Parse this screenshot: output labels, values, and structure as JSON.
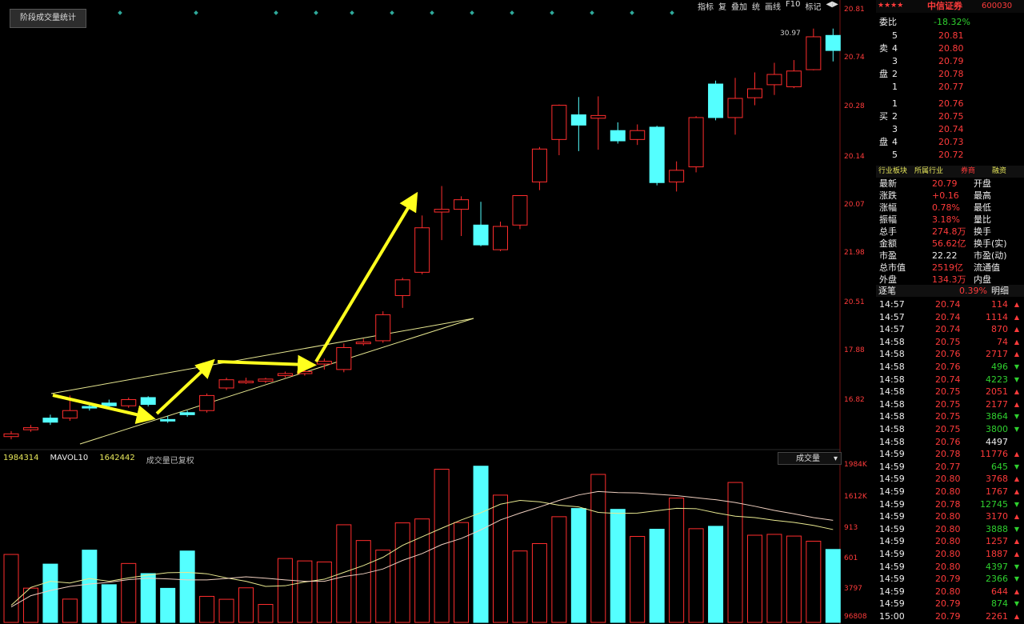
{
  "top_button": "阶段成交量统计",
  "toolbar": [
    "指标",
    "复",
    "叠加",
    "统",
    "画线",
    "F10",
    "标记",
    "◀▶"
  ],
  "price_axis": [
    "20.81",
    "20.74",
    "20.28",
    "20.14",
    "20.07",
    "21.98",
    "20.51",
    "17.88",
    "16.82"
  ],
  "price_peak_label": "30.97",
  "volume_header": {
    "item1": "1984314",
    "item2": "MAVOL10",
    "item3": "1642442",
    "item4": "成交量已复权"
  },
  "volume_selector": "成交量",
  "volume_axis": [
    "1984K",
    "1612K",
    "913",
    "601",
    "3797",
    "96808"
  ],
  "panel": {
    "stars": "★★★★",
    "stock_name": "中信证券",
    "stock_code": "600030",
    "ratio_label": "委比",
    "ratio_value": "-18.32%",
    "sell_label": "卖盘",
    "buy_label": "买盘",
    "sell": [
      {
        "lvl": "5",
        "price": "20.81"
      },
      {
        "lvl": "4",
        "price": "20.80"
      },
      {
        "lvl": "3",
        "price": "20.79"
      },
      {
        "lvl": "2",
        "price": "20.78"
      },
      {
        "lvl": "1",
        "price": "20.77"
      }
    ],
    "buy": [
      {
        "lvl": "1",
        "price": "20.76"
      },
      {
        "lvl": "2",
        "price": "20.75"
      },
      {
        "lvl": "3",
        "price": "20.74"
      },
      {
        "lvl": "4",
        "price": "20.73"
      },
      {
        "lvl": "5",
        "price": "20.72"
      }
    ],
    "stat_header": [
      "行业板块",
      "所属行业",
      "券商",
      "融资"
    ],
    "stats": [
      {
        "k1": "最新",
        "v1": "20.79",
        "k2": "开盘"
      },
      {
        "k1": "涨跌",
        "v1": "+0.16",
        "k2": "最高"
      },
      {
        "k1": "涨幅",
        "v1": "0.78%",
        "k2": "最低"
      },
      {
        "k1": "振幅",
        "v1": "3.18%",
        "k2": "量比"
      },
      {
        "k1": "总手",
        "v1": "274.8万",
        "k2": "换手"
      },
      {
        "k1": "金额",
        "v1": "56.62亿",
        "k2": "换手(实)"
      },
      {
        "k1": "市盈",
        "v1": "22.22",
        "k2": "市盈(动)"
      },
      {
        "k1": "总市值",
        "v1": "2519亿",
        "k2": "流通值"
      },
      {
        "k1": "外盘",
        "v1": "134.3万",
        "k2": "内盘"
      }
    ],
    "ticks_header": [
      "逐笔",
      "0.39%",
      "明细"
    ],
    "ticks": [
      {
        "t": "14:57",
        "p": "20.74",
        "v": "114",
        "d": "up"
      },
      {
        "t": "14:57",
        "p": "20.74",
        "v": "1114",
        "d": "up"
      },
      {
        "t": "14:57",
        "p": "20.74",
        "v": "870",
        "d": "up"
      },
      {
        "t": "14:58",
        "p": "20.75",
        "v": "74",
        "d": "up"
      },
      {
        "t": "14:58",
        "p": "20.76",
        "v": "2717",
        "d": "up"
      },
      {
        "t": "14:58",
        "p": "20.76",
        "v": "496",
        "d": "down"
      },
      {
        "t": "14:58",
        "p": "20.74",
        "v": "4223",
        "d": "down"
      },
      {
        "t": "14:58",
        "p": "20.75",
        "v": "2051",
        "d": "up"
      },
      {
        "t": "14:58",
        "p": "20.75",
        "v": "2177",
        "d": "up"
      },
      {
        "t": "14:58",
        "p": "20.75",
        "v": "3864",
        "d": "down"
      },
      {
        "t": "14:58",
        "p": "20.75",
        "v": "3800",
        "d": "down"
      },
      {
        "t": "14:58",
        "p": "20.76",
        "v": "4497",
        "d": "white"
      },
      {
        "t": "14:59",
        "p": "20.78",
        "v": "11776",
        "d": "up"
      },
      {
        "t": "14:59",
        "p": "20.77",
        "v": "645",
        "d": "down"
      },
      {
        "t": "14:59",
        "p": "20.80",
        "v": "3768",
        "d": "up"
      },
      {
        "t": "14:59",
        "p": "20.80",
        "v": "1767",
        "d": "up"
      },
      {
        "t": "14:59",
        "p": "20.78",
        "v": "12745",
        "d": "down"
      },
      {
        "t": "14:59",
        "p": "20.80",
        "v": "3170",
        "d": "up"
      },
      {
        "t": "14:59",
        "p": "20.80",
        "v": "3888",
        "d": "down"
      },
      {
        "t": "14:59",
        "p": "20.80",
        "v": "1257",
        "d": "up"
      },
      {
        "t": "14:59",
        "p": "20.80",
        "v": "1887",
        "d": "up"
      },
      {
        "t": "14:59",
        "p": "20.80",
        "v": "4397",
        "d": "down"
      },
      {
        "t": "14:59",
        "p": "20.79",
        "v": "2366",
        "d": "down"
      },
      {
        "t": "14:59",
        "p": "20.80",
        "v": "644",
        "d": "up"
      },
      {
        "t": "14:59",
        "p": "20.79",
        "v": "874",
        "d": "down"
      },
      {
        "t": "15:00",
        "p": "20.79",
        "v": "2261",
        "d": "up"
      }
    ]
  },
  "colors": {
    "up": "#ff2d2d",
    "down": "#54ffff",
    "arrow": "#ffff1e",
    "ma_yellow": "#e8e890",
    "ma_white": "#f0d0c0",
    "axis_text": "#ff3b3b"
  },
  "chart_data": {
    "type": "candlestick",
    "candles": [
      {
        "o": 16.62,
        "c": 16.66,
        "h": 16.7,
        "l": 16.58
      },
      {
        "o": 16.72,
        "c": 16.75,
        "h": 16.79,
        "l": 16.69
      },
      {
        "o": 16.89,
        "c": 16.83,
        "h": 16.94,
        "l": 16.79
      },
      {
        "o": 16.89,
        "c": 17.0,
        "h": 17.22,
        "l": 16.85
      },
      {
        "o": 17.06,
        "c": 17.04,
        "h": 17.11,
        "l": 17.0
      },
      {
        "o": 17.11,
        "c": 17.07,
        "h": 17.16,
        "l": 17.04
      },
      {
        "o": 17.07,
        "c": 17.16,
        "h": 17.19,
        "l": 17.04
      },
      {
        "o": 17.19,
        "c": 17.09,
        "h": 17.21,
        "l": 17.06
      },
      {
        "o": 16.87,
        "c": 16.85,
        "h": 16.92,
        "l": 16.82
      },
      {
        "o": 16.97,
        "c": 16.94,
        "h": 17.0,
        "l": 16.91
      },
      {
        "o": 17.0,
        "c": 17.22,
        "h": 17.25,
        "l": 16.97
      },
      {
        "o": 17.33,
        "c": 17.45,
        "h": 17.48,
        "l": 17.3
      },
      {
        "o": 17.42,
        "c": 17.43,
        "h": 17.48,
        "l": 17.39
      },
      {
        "o": 17.43,
        "c": 17.46,
        "h": 17.48,
        "l": 17.4
      },
      {
        "o": 17.51,
        "c": 17.54,
        "h": 17.57,
        "l": 17.48
      },
      {
        "o": 17.54,
        "c": 17.57,
        "h": 17.6,
        "l": 17.51
      },
      {
        "o": 17.68,
        "c": 17.72,
        "h": 17.76,
        "l": 17.6
      },
      {
        "o": 17.6,
        "c": 17.92,
        "h": 17.98,
        "l": 17.56
      },
      {
        "o": 17.98,
        "c": 18.0,
        "h": 18.05,
        "l": 17.95
      },
      {
        "o": 18.02,
        "c": 18.4,
        "h": 18.45,
        "l": 17.99
      },
      {
        "o": 18.68,
        "c": 18.91,
        "h": 18.94,
        "l": 18.5
      },
      {
        "o": 19.02,
        "c": 19.67,
        "h": 19.85,
        "l": 18.99
      },
      {
        "o": 19.9,
        "c": 19.94,
        "h": 20.28,
        "l": 19.49
      },
      {
        "o": 19.94,
        "c": 20.08,
        "h": 20.13,
        "l": 19.55
      },
      {
        "o": 19.71,
        "c": 19.42,
        "h": 20.05,
        "l": 19.4
      },
      {
        "o": 19.35,
        "c": 19.69,
        "h": 19.76,
        "l": 19.33
      },
      {
        "o": 19.71,
        "c": 20.14,
        "h": 20.14,
        "l": 19.65
      },
      {
        "o": 20.34,
        "c": 20.82,
        "h": 20.85,
        "l": 20.22
      },
      {
        "o": 20.96,
        "c": 21.46,
        "h": 21.47,
        "l": 20.73
      },
      {
        "o": 21.32,
        "c": 21.17,
        "h": 21.58,
        "l": 20.79
      },
      {
        "o": 21.27,
        "c": 21.31,
        "h": 21.59,
        "l": 20.81
      },
      {
        "o": 21.09,
        "c": 20.94,
        "h": 21.21,
        "l": 20.9
      },
      {
        "o": 20.96,
        "c": 21.09,
        "h": 21.18,
        "l": 20.88
      },
      {
        "o": 21.14,
        "c": 20.33,
        "h": 21.16,
        "l": 20.29
      },
      {
        "o": 20.34,
        "c": 20.51,
        "h": 20.64,
        "l": 20.2
      },
      {
        "o": 20.56,
        "c": 21.28,
        "h": 21.3,
        "l": 20.48
      },
      {
        "o": 21.77,
        "c": 21.28,
        "h": 21.82,
        "l": 21.24
      },
      {
        "o": 21.28,
        "c": 21.56,
        "h": 21.86,
        "l": 21.03
      },
      {
        "o": 21.57,
        "c": 21.7,
        "h": 21.94,
        "l": 21.46
      },
      {
        "o": 21.76,
        "c": 21.91,
        "h": 22.08,
        "l": 21.61
      },
      {
        "o": 21.73,
        "c": 21.96,
        "h": 22.12,
        "l": 21.71
      },
      {
        "o": 21.98,
        "c": 22.46,
        "h": 22.58,
        "l": 21.97
      },
      {
        "o": 22.48,
        "c": 22.26,
        "h": 22.58,
        "l": 22.1
      }
    ],
    "volumes": [
      1984,
      1000,
      1702,
      680,
      2110,
      1101,
      1720,
      1425,
      995,
      2084,
      760,
      675,
      1010,
      525,
      1865,
      1795,
      1765,
      2850,
      2390,
      2110,
      2905,
      3020,
      4470,
      2915,
      4560,
      3715,
      2085,
      2300,
      3085,
      3325,
      4320,
      3300,
      2510,
      2720,
      3630,
      2735,
      2805,
      4085,
      2545,
      2570,
      2520,
      2370,
      2130
    ],
    "ma5": [
      500,
      1020,
      1200,
      1150,
      1280,
      1200,
      1300,
      1380,
      1450,
      1460,
      1420,
      1300,
      1200,
      1050,
      1070,
      1180,
      1260,
      1460,
      1660,
      1900,
      2250,
      2500,
      2750,
      2990,
      3200,
      3450,
      3560,
      3520,
      3420,
      3370,
      3210,
      3180,
      3190,
      3260,
      3330,
      3320,
      3200,
      3100,
      3060,
      2980,
      2920,
      2830,
      2710
    ],
    "ma10": [
      450,
      780,
      930,
      1050,
      1120,
      1170,
      1250,
      1290,
      1270,
      1240,
      1240,
      1280,
      1330,
      1290,
      1240,
      1200,
      1200,
      1340,
      1420,
      1560,
      1810,
      2010,
      2270,
      2450,
      2700,
      2990,
      3190,
      3370,
      3560,
      3720,
      3820,
      3790,
      3780,
      3740,
      3700,
      3640,
      3580,
      3500,
      3390,
      3270,
      3170,
      3060,
      2980
    ]
  }
}
